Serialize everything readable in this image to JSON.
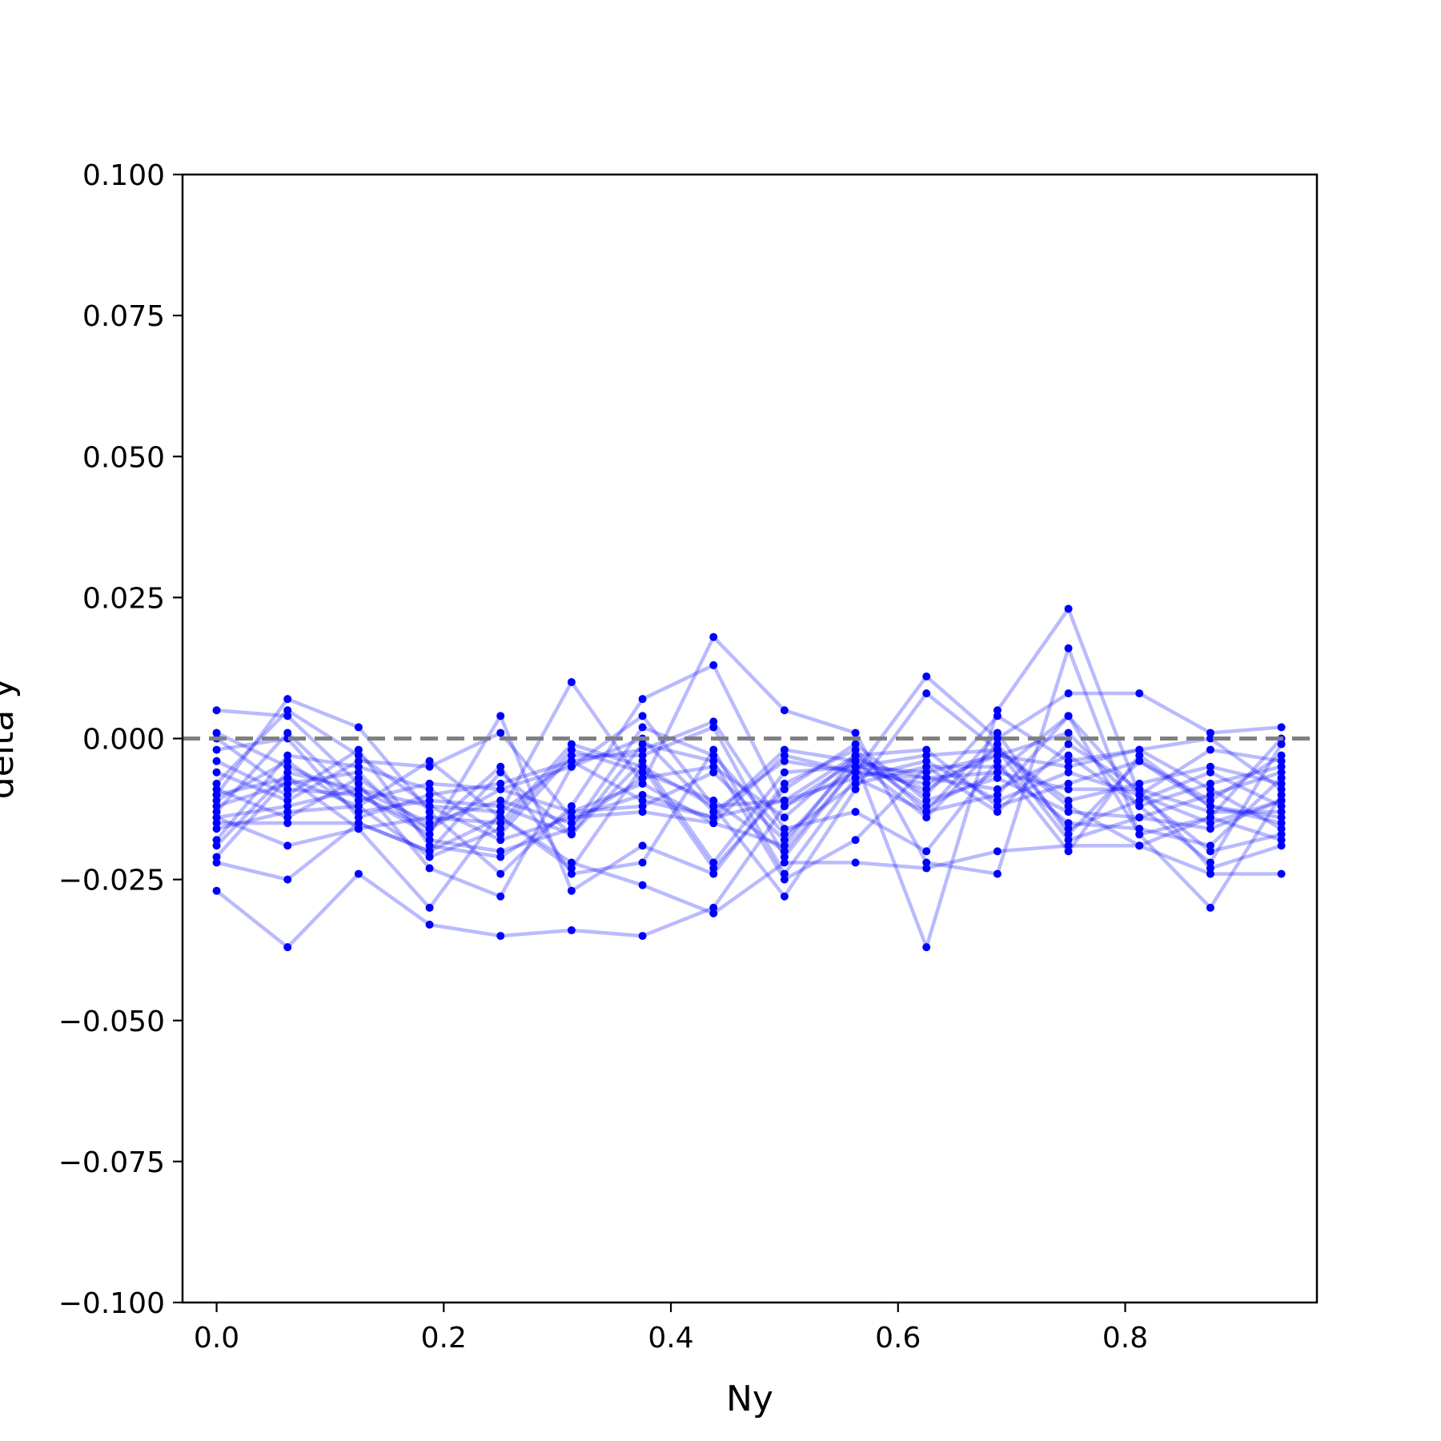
{
  "chart_data": {
    "type": "line",
    "title": "",
    "xlabel": "Ny",
    "ylabel": "delta y",
    "xlim": [
      -0.03,
      0.9688
    ],
    "ylim": [
      -0.1,
      0.1
    ],
    "x_ticks": [
      0.0,
      0.2,
      0.4,
      0.6,
      0.8
    ],
    "x_tick_labels": [
      "0.0",
      "0.2",
      "0.4",
      "0.6",
      "0.8"
    ],
    "y_ticks": [
      0.1,
      0.075,
      0.05,
      0.025,
      0.0,
      -0.025,
      -0.05,
      -0.075,
      -0.1
    ],
    "y_tick_labels": [
      "0.100",
      "0.075",
      "0.050",
      "0.025",
      "0.000",
      "−0.025",
      "−0.050",
      "−0.075",
      "−0.100"
    ],
    "reference_line": {
      "y": 0.0,
      "style": "dashed",
      "color": "#808080"
    },
    "grid": false,
    "legend": "none",
    "series_color": "#0000ff",
    "x": [
      0.0,
      0.0625,
      0.125,
      0.1875,
      0.25,
      0.3125,
      0.375,
      0.4375,
      0.5,
      0.5625,
      0.625,
      0.6875,
      0.75,
      0.8125,
      0.875,
      0.9375
    ],
    "series": [
      {
        "values": [
          -0.027,
          -0.037,
          -0.024,
          -0.033,
          -0.035,
          -0.034,
          -0.035,
          -0.03,
          -0.012,
          -0.004,
          -0.037,
          0.005,
          0.023,
          -0.01,
          -0.015,
          -0.011
        ]
      },
      {
        "values": [
          -0.014,
          -0.019,
          -0.016,
          -0.03,
          -0.013,
          0.01,
          -0.008,
          0.018,
          0.005,
          0.001,
          -0.022,
          -0.024,
          0.016,
          -0.017,
          -0.03,
          -0.01
        ]
      },
      {
        "values": [
          -0.01,
          0.007,
          0.002,
          -0.013,
          -0.024,
          -0.012,
          0.007,
          0.013,
          -0.012,
          -0.006,
          0.011,
          0.0,
          0.008,
          0.008,
          0.001,
          0.002
        ]
      },
      {
        "values": [
          0.005,
          0.004,
          -0.008,
          -0.023,
          -0.028,
          -0.005,
          0.004,
          -0.012,
          -0.028,
          -0.009,
          0.008,
          -0.002,
          -0.012,
          -0.019,
          -0.024,
          -0.024
        ]
      },
      {
        "values": [
          -0.022,
          -0.025,
          -0.015,
          -0.02,
          -0.014,
          -0.022,
          -0.026,
          -0.031,
          -0.022,
          -0.022,
          -0.023,
          -0.02,
          -0.019,
          -0.019,
          -0.014,
          -0.018
        ]
      },
      {
        "values": [
          0.001,
          -0.005,
          -0.01,
          -0.017,
          0.004,
          -0.027,
          -0.019,
          -0.024,
          -0.008,
          -0.002,
          -0.013,
          -0.01,
          0.004,
          -0.01,
          -0.002,
          -0.004
        ]
      },
      {
        "values": [
          -0.012,
          -0.008,
          -0.006,
          -0.018,
          -0.02,
          -0.016,
          0.002,
          -0.003,
          -0.017,
          -0.008,
          -0.005,
          -0.005,
          -0.015,
          -0.016,
          -0.019,
          -0.007
        ]
      },
      {
        "values": [
          -0.002,
          0.0,
          -0.014,
          -0.01,
          -0.008,
          -0.004,
          -0.002,
          0.003,
          -0.016,
          -0.013,
          -0.02,
          -0.004,
          -0.02,
          -0.003,
          -0.012,
          -0.015
        ]
      },
      {
        "values": [
          -0.006,
          -0.011,
          -0.004,
          -0.005,
          0.001,
          -0.014,
          -0.01,
          -0.014,
          -0.002,
          -0.004,
          -0.007,
          -0.009,
          -0.003,
          -0.012,
          -0.008,
          -0.005
        ]
      },
      {
        "values": [
          -0.016,
          -0.013,
          -0.012,
          -0.021,
          -0.016,
          -0.002,
          -0.006,
          -0.011,
          -0.02,
          -0.005,
          -0.009,
          -0.002,
          -0.018,
          -0.014,
          -0.01,
          -0.006
        ]
      },
      {
        "values": [
          -0.019,
          -0.006,
          -0.009,
          -0.012,
          -0.018,
          -0.014,
          -0.013,
          -0.015,
          -0.019,
          -0.003,
          -0.012,
          -0.006,
          -0.009,
          -0.009,
          -0.013,
          -0.013
        ]
      },
      {
        "values": [
          -0.011,
          -0.004,
          -0.013,
          -0.011,
          -0.012,
          -0.017,
          -0.004,
          -0.022,
          -0.006,
          -0.005,
          -0.003,
          -0.002,
          -0.011,
          -0.008,
          -0.005,
          -0.008
        ]
      },
      {
        "values": [
          -0.009,
          -0.014,
          -0.007,
          -0.016,
          -0.005,
          -0.024,
          -0.022,
          -0.002,
          -0.024,
          -0.007,
          -0.004,
          -0.011,
          -0.006,
          -0.01,
          -0.02,
          -0.017
        ]
      },
      {
        "values": [
          -0.004,
          -0.01,
          -0.002,
          -0.019,
          -0.021,
          -0.013,
          -0.012,
          -0.006,
          -0.018,
          -0.004,
          -0.014,
          -0.001,
          -0.016,
          -0.011,
          -0.006,
          -0.012
        ]
      },
      {
        "values": [
          -0.013,
          0.001,
          -0.011,
          -0.008,
          -0.009,
          -0.005,
          0.0,
          -0.013,
          -0.004,
          -0.006,
          -0.008,
          -0.003,
          0.001,
          -0.012,
          -0.022,
          -0.001
        ]
      },
      {
        "values": [
          -0.021,
          -0.007,
          -0.016,
          -0.014,
          -0.015,
          -0.001,
          -0.005,
          -0.023,
          -0.009,
          -0.001,
          -0.011,
          -0.007,
          -0.013,
          -0.014,
          -0.016,
          -0.011
        ]
      },
      {
        "values": [
          -0.014,
          -0.012,
          -0.009,
          -0.015,
          -0.011,
          -0.015,
          -0.007,
          -0.005,
          -0.014,
          -0.003,
          -0.002,
          -0.012,
          -0.008,
          -0.004,
          -0.011,
          -0.003
        ]
      },
      {
        "values": [
          -0.018,
          -0.003,
          -0.005,
          -0.009,
          -0.017,
          -0.003,
          -0.003,
          0.002,
          -0.021,
          -0.005,
          -0.006,
          -0.003,
          -0.005,
          -0.002,
          -0.009,
          -0.016
        ]
      },
      {
        "values": [
          -0.008,
          0.005,
          -0.003,
          -0.012,
          -0.013,
          -0.004,
          -0.011,
          -0.014,
          -0.011,
          -0.003,
          -0.01,
          0.004,
          -0.004,
          -0.002,
          0.0,
          -0.009
        ]
      },
      {
        "values": [
          -0.015,
          -0.015,
          -0.015,
          -0.02,
          -0.006,
          -0.017,
          -0.001,
          -0.004,
          -0.025,
          -0.018,
          -0.005,
          -0.013,
          -0.001,
          -0.009,
          -0.023,
          -0.019
        ]
      },
      {
        "values": [
          -0.01,
          -0.007,
          -0.012,
          -0.004,
          -0.014,
          -0.023,
          -0.005,
          -0.012,
          -0.011,
          -0.007,
          -0.013,
          0.001,
          -0.017,
          -0.004,
          -0.012,
          -0.014
        ]
      },
      {
        "values": [
          0.0,
          -0.009,
          -0.01,
          -0.016,
          -0.009,
          -0.013,
          -0.008,
          -0.015,
          -0.003,
          -0.006,
          -0.007,
          -0.006,
          0.004,
          -0.017,
          -0.014,
          0.0
        ]
      }
    ]
  }
}
